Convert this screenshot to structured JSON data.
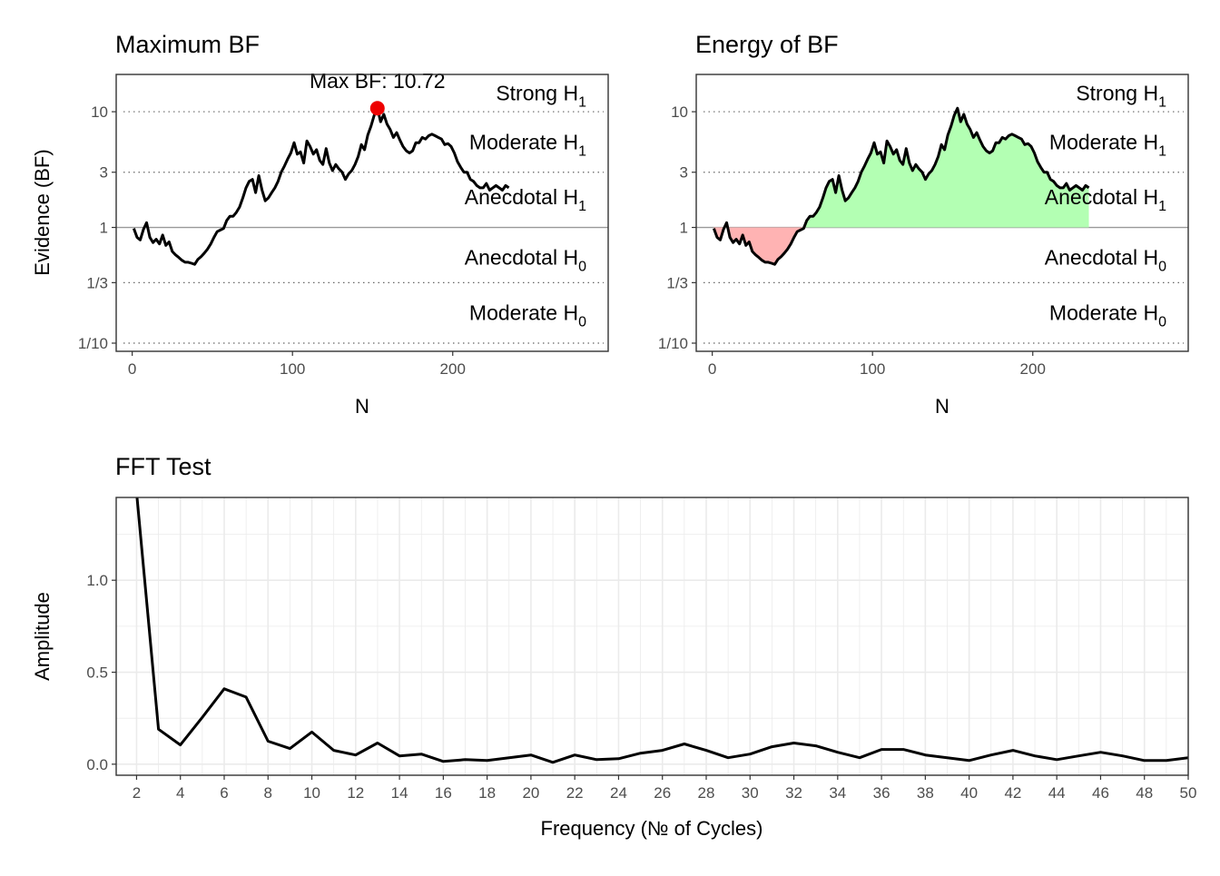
{
  "colors": {
    "line": "#000000",
    "max_point": "#ee0000",
    "positive_fill": "#b3ffb3",
    "negative_fill": "#ffb3b3",
    "grid": "#ebebeb",
    "ref_line": "#999999"
  },
  "chart_data": [
    {
      "id": "max_bf",
      "type": "line",
      "title": "Maximum BF",
      "xlabel": "N",
      "ylabel": "Evidence (BF)",
      "y_scale": "log",
      "xlim": [
        -10,
        297
      ],
      "ylim": [
        0.085,
        21
      ],
      "x_ticks": [
        0,
        100,
        200
      ],
      "y_ticks": [
        {
          "value": 0.1,
          "label": "1/10"
        },
        {
          "value": 0.3333,
          "label": "1/3"
        },
        {
          "value": 1,
          "label": "1"
        },
        {
          "value": 3,
          "label": "3"
        },
        {
          "value": 10,
          "label": "10"
        }
      ],
      "evidence_lines": [
        0.1,
        0.3333,
        3,
        10
      ],
      "reference_line": 1,
      "zones": [
        {
          "main": "Strong H",
          "sub": "1",
          "y": 14.5
        },
        {
          "main": "Moderate H",
          "sub": "1",
          "y": 5.45
        },
        {
          "main": "Anecdotal H",
          "sub": "1",
          "y": 1.83
        },
        {
          "main": "Anecdotal H",
          "sub": "0",
          "y": 0.55
        },
        {
          "main": "Moderate H",
          "sub": "0",
          "y": 0.183
        }
      ],
      "series": [
        {
          "x": [
            1,
            3,
            5,
            7,
            9,
            11,
            13,
            15,
            17,
            19,
            21,
            23,
            25,
            27,
            29,
            31,
            33,
            35,
            37,
            39,
            41,
            43,
            45,
            47,
            49,
            51,
            53,
            55,
            57,
            59,
            61,
            63,
            65,
            67,
            69,
            71,
            73,
            75,
            77,
            79,
            81,
            83,
            85,
            87,
            89,
            91,
            93,
            95,
            97,
            99,
            101,
            103,
            105,
            107,
            109,
            111,
            113,
            115,
            117,
            119,
            121,
            123,
            125,
            127,
            129,
            131,
            133,
            135,
            137,
            139,
            141,
            143,
            145,
            147,
            149,
            151,
            153,
            155,
            157,
            159,
            161,
            163,
            165,
            167,
            169,
            171,
            173,
            175,
            177,
            179,
            181,
            183,
            185,
            187,
            189,
            191,
            193,
            195,
            197,
            199,
            201,
            203,
            205,
            207,
            209,
            211,
            213,
            215,
            217,
            219,
            221,
            223,
            225,
            227,
            229,
            231,
            233,
            235
          ],
          "y": [
            0.98,
            0.82,
            0.78,
            0.96,
            1.1,
            0.82,
            0.74,
            0.79,
            0.72,
            0.86,
            0.7,
            0.75,
            0.62,
            0.58,
            0.55,
            0.52,
            0.5,
            0.5,
            0.49,
            0.48,
            0.53,
            0.56,
            0.6,
            0.65,
            0.72,
            0.82,
            0.92,
            0.95,
            0.98,
            1.15,
            1.25,
            1.25,
            1.35,
            1.5,
            1.8,
            2.2,
            2.5,
            2.6,
            2.0,
            2.8,
            2.1,
            1.7,
            1.8,
            2.0,
            2.2,
            2.5,
            3.0,
            3.4,
            3.9,
            4.4,
            5.4,
            4.3,
            4.5,
            3.6,
            5.6,
            5.0,
            4.3,
            4.7,
            3.8,
            3.5,
            4.8,
            3.6,
            3.1,
            3.5,
            3.2,
            3.0,
            2.6,
            2.9,
            3.1,
            3.5,
            4.1,
            5.2,
            4.7,
            6.3,
            7.5,
            9.3,
            10.72,
            8.2,
            9.5,
            7.8,
            7.0,
            6.0,
            6.6,
            5.7,
            5.0,
            4.6,
            4.4,
            4.6,
            5.4,
            5.4,
            6.0,
            5.8,
            6.2,
            6.4,
            6.2,
            6.0,
            5.8,
            5.2,
            5.3,
            5.0,
            4.4,
            3.7,
            3.3,
            3.0,
            3.0,
            2.6,
            2.5,
            2.3,
            2.2,
            2.2,
            2.4,
            2.1,
            2.2,
            2.3,
            2.2,
            2.1,
            2.3,
            2.2
          ]
        }
      ],
      "max_point": {
        "x": 153,
        "y": 10.72
      },
      "annotation": "Max BF: 10.72"
    },
    {
      "id": "energy_bf",
      "type": "area",
      "title": "Energy of BF",
      "xlabel": "N",
      "y_scale": "log",
      "xlim": [
        -10,
        297
      ],
      "ylim": [
        0.085,
        21
      ],
      "x_ticks": [
        0,
        100,
        200
      ],
      "y_ticks": [
        {
          "value": 0.1,
          "label": "1/10"
        },
        {
          "value": 0.3333,
          "label": "1/3"
        },
        {
          "value": 1,
          "label": "1"
        },
        {
          "value": 3,
          "label": "3"
        },
        {
          "value": 10,
          "label": "10"
        }
      ],
      "evidence_lines": [
        0.1,
        0.3333,
        3,
        10
      ],
      "reference_line": 1,
      "zones": [
        {
          "main": "Strong H",
          "sub": "1",
          "y": 14.5
        },
        {
          "main": "Moderate H",
          "sub": "1",
          "y": 5.45
        },
        {
          "main": "Anecdotal H",
          "sub": "1",
          "y": 1.83
        },
        {
          "main": "Anecdotal H",
          "sub": "0",
          "y": 0.55
        },
        {
          "main": "Moderate H",
          "sub": "0",
          "y": 0.183
        }
      ],
      "series": [
        {
          "x": [
            1,
            3,
            5,
            7,
            9,
            11,
            13,
            15,
            17,
            19,
            21,
            23,
            25,
            27,
            29,
            31,
            33,
            35,
            37,
            39,
            41,
            43,
            45,
            47,
            49,
            51,
            53,
            55,
            57,
            59,
            61,
            63,
            65,
            67,
            69,
            71,
            73,
            75,
            77,
            79,
            81,
            83,
            85,
            87,
            89,
            91,
            93,
            95,
            97,
            99,
            101,
            103,
            105,
            107,
            109,
            111,
            113,
            115,
            117,
            119,
            121,
            123,
            125,
            127,
            129,
            131,
            133,
            135,
            137,
            139,
            141,
            143,
            145,
            147,
            149,
            151,
            153,
            155,
            157,
            159,
            161,
            163,
            165,
            167,
            169,
            171,
            173,
            175,
            177,
            179,
            181,
            183,
            185,
            187,
            189,
            191,
            193,
            195,
            197,
            199,
            201,
            203,
            205,
            207,
            209,
            211,
            213,
            215,
            217,
            219,
            221,
            223,
            225,
            227,
            229,
            231,
            233,
            235
          ],
          "y": [
            0.98,
            0.82,
            0.78,
            0.96,
            1.1,
            0.82,
            0.74,
            0.79,
            0.72,
            0.86,
            0.7,
            0.75,
            0.62,
            0.58,
            0.55,
            0.52,
            0.5,
            0.5,
            0.49,
            0.48,
            0.53,
            0.56,
            0.6,
            0.65,
            0.72,
            0.82,
            0.92,
            0.95,
            0.98,
            1.15,
            1.25,
            1.25,
            1.35,
            1.5,
            1.8,
            2.2,
            2.5,
            2.6,
            2.0,
            2.8,
            2.1,
            1.7,
            1.8,
            2.0,
            2.2,
            2.5,
            3.0,
            3.4,
            3.9,
            4.4,
            5.4,
            4.3,
            4.5,
            3.6,
            5.6,
            5.0,
            4.3,
            4.7,
            3.8,
            3.5,
            4.8,
            3.6,
            3.1,
            3.5,
            3.2,
            3.0,
            2.6,
            2.9,
            3.1,
            3.5,
            4.1,
            5.2,
            4.7,
            6.3,
            7.5,
            9.3,
            10.72,
            8.2,
            9.5,
            7.8,
            7.0,
            6.0,
            6.6,
            5.7,
            5.0,
            4.6,
            4.4,
            4.6,
            5.4,
            5.4,
            6.0,
            5.8,
            6.2,
            6.4,
            6.2,
            6.0,
            5.8,
            5.2,
            5.3,
            5.0,
            4.4,
            3.7,
            3.3,
            3.0,
            3.0,
            2.6,
            2.5,
            2.3,
            2.2,
            2.2,
            2.4,
            2.1,
            2.2,
            2.3,
            2.2,
            2.1,
            2.3,
            2.2
          ]
        }
      ]
    },
    {
      "id": "fft_test",
      "type": "line",
      "title": "FFT Test",
      "xlabel": "Frequency (№ of Cycles)",
      "ylabel": "Amplitude",
      "xlim": [
        1.07,
        50
      ],
      "ylim": [
        -0.06,
        1.45
      ],
      "x_ticks": [
        2,
        4,
        6,
        8,
        10,
        12,
        14,
        16,
        18,
        20,
        22,
        24,
        26,
        28,
        30,
        32,
        34,
        36,
        38,
        40,
        42,
        44,
        46,
        48,
        50
      ],
      "y_ticks": [
        {
          "value": 0,
          "label": "0.0"
        },
        {
          "value": 0.5,
          "label": "0.5"
        },
        {
          "value": 1,
          "label": "1.0"
        }
      ],
      "grid": true,
      "series": [
        {
          "x": [
            2,
            3,
            4,
            5,
            6,
            7,
            8,
            9,
            10,
            11,
            12,
            13,
            14,
            15,
            16,
            17,
            18,
            19,
            20,
            21,
            22,
            23,
            24,
            25,
            26,
            27,
            28,
            29,
            30,
            31,
            32,
            33,
            34,
            35,
            36,
            37,
            38,
            39,
            40,
            41,
            42,
            43,
            44,
            45,
            46,
            47,
            48,
            49,
            50
          ],
          "y": [
            1.48,
            0.19,
            0.105,
            0.255,
            0.41,
            0.365,
            0.125,
            0.085,
            0.175,
            0.075,
            0.05,
            0.115,
            0.045,
            0.055,
            0.015,
            0.025,
            0.02,
            0.035,
            0.05,
            0.01,
            0.05,
            0.025,
            0.03,
            0.06,
            0.075,
            0.11,
            0.075,
            0.035,
            0.055,
            0.095,
            0.115,
            0.1,
            0.065,
            0.035,
            0.08,
            0.08,
            0.05,
            0.035,
            0.02,
            0.05,
            0.075,
            0.045,
            0.025,
            0.045,
            0.065,
            0.045,
            0.02,
            0.02,
            0.035
          ]
        }
      ]
    }
  ]
}
